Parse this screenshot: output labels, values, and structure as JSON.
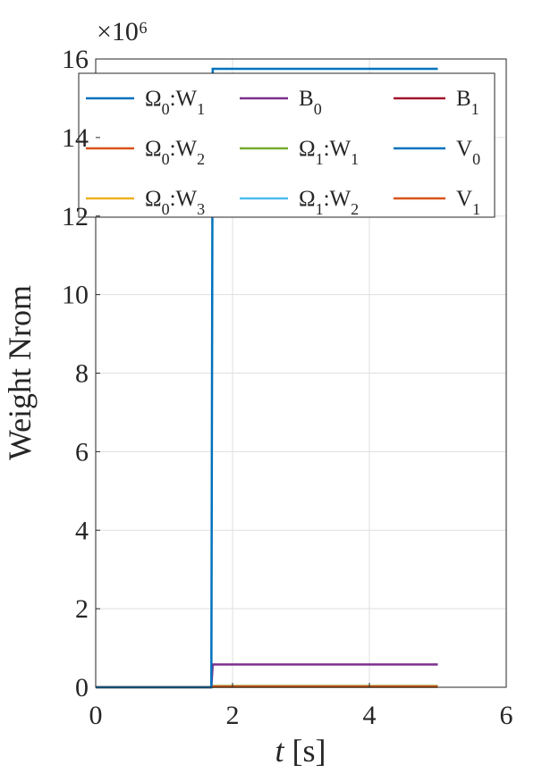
{
  "chart_data": {
    "type": "line",
    "xlabel": "t [s]",
    "ylabel": "Weight Nrom",
    "y_multiplier": "×10⁶",
    "xlim": [
      0,
      6
    ],
    "xticks": [
      0,
      2,
      4,
      6
    ],
    "ylim": [
      0,
      16
    ],
    "yticks": [
      0,
      2,
      4,
      6,
      8,
      10,
      12,
      14,
      16
    ],
    "grid": true,
    "legend": "north",
    "legend_columns": 3,
    "x": [
      0,
      1.69,
      1.71,
      5
    ],
    "series": [
      {
        "name": "Ω0:W1",
        "color": "#0072BD",
        "values": [
          0,
          0,
          15.75,
          15.75
        ]
      },
      {
        "name": "Ω0:W2",
        "color": "#D95319",
        "values": [
          0,
          0,
          0.02,
          0.02
        ]
      },
      {
        "name": "Ω0:W3",
        "color": "#EDB120",
        "values": [
          0,
          0,
          0.01,
          0.01
        ]
      },
      {
        "name": "B0",
        "color": "#7E2F8E",
        "values": [
          0,
          0,
          0.58,
          0.58
        ]
      },
      {
        "name": "Ω1:W1",
        "color": "#77AC30",
        "values": [
          0,
          0,
          0.03,
          0.03
        ]
      },
      {
        "name": "Ω1:W2",
        "color": "#4DBEEE",
        "values": [
          0,
          0,
          0.01,
          0.01
        ]
      },
      {
        "name": "B1",
        "color": "#A2142F",
        "values": [
          0,
          0,
          0.01,
          0.01
        ]
      },
      {
        "name": "V0",
        "color": "#0072BD",
        "values": [
          0,
          0,
          0.01,
          0.01
        ]
      },
      {
        "name": "V1",
        "color": "#D95319",
        "values": [
          0,
          0,
          0.01,
          0.01
        ]
      }
    ]
  }
}
